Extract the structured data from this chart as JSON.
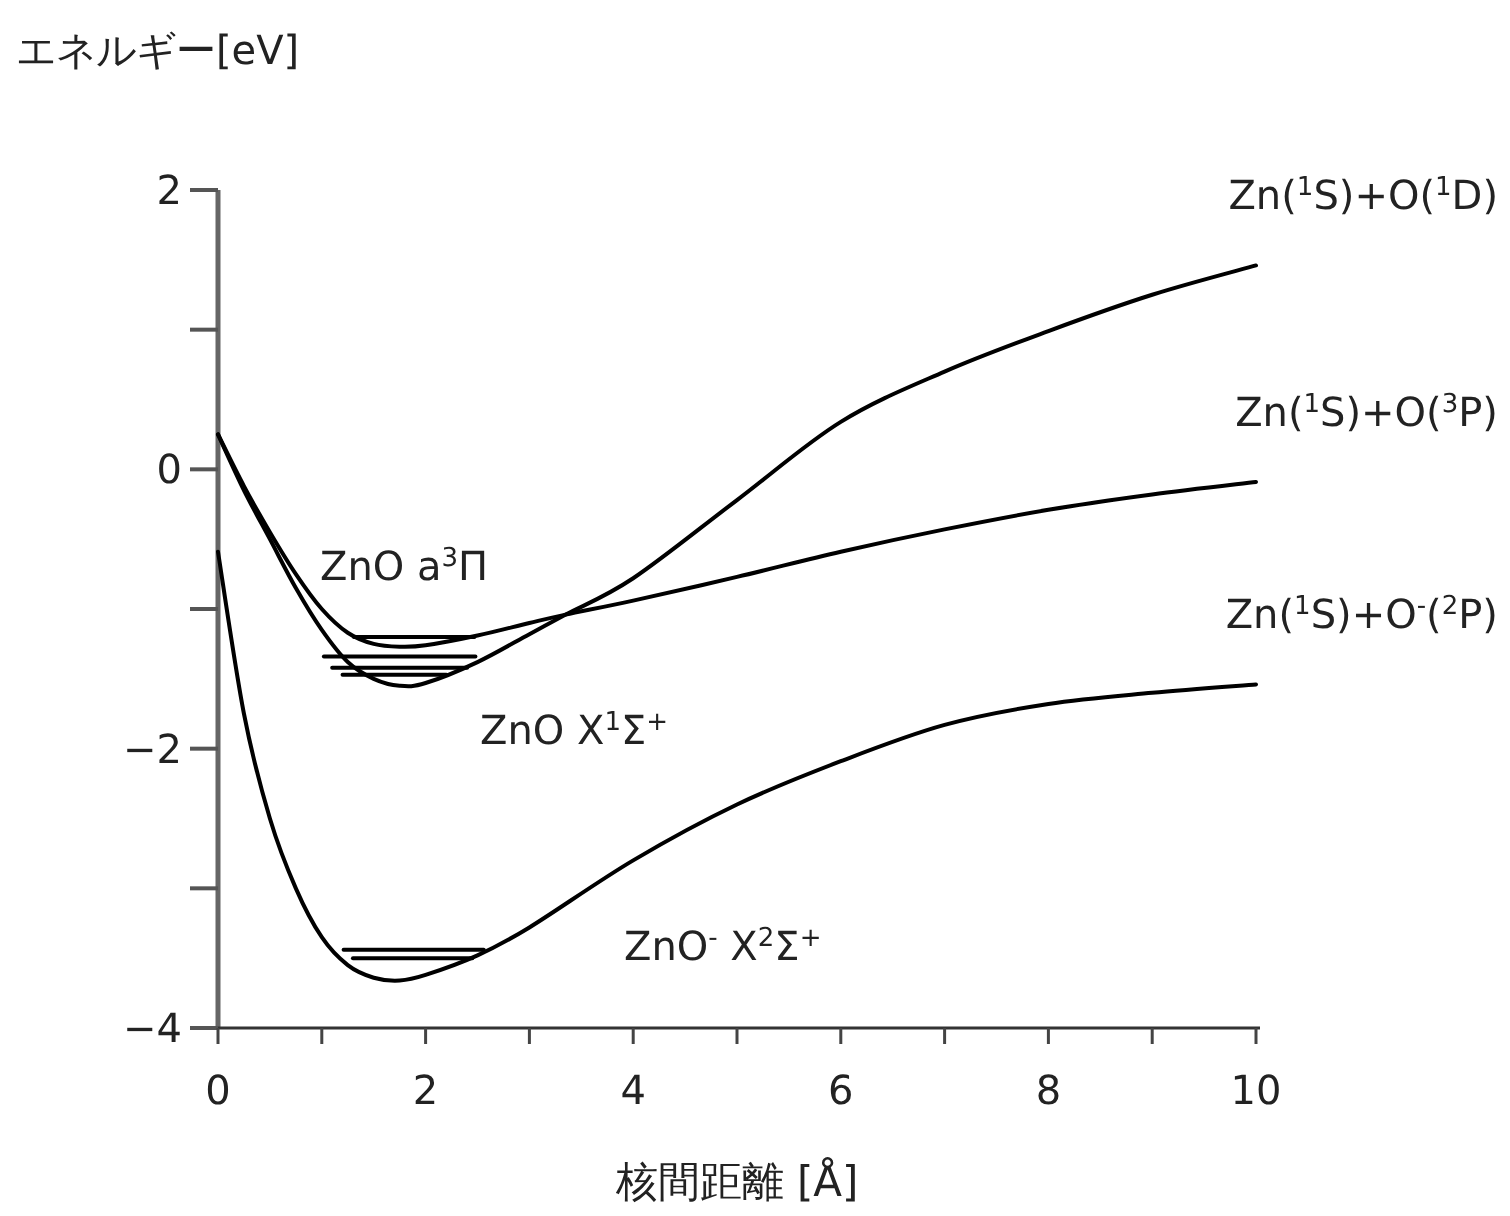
{
  "chart_data": {
    "type": "line",
    "xlabel": "核間距離 [Å]",
    "ylabel": "エネルギー[eV]",
    "xlim": [
      0,
      10
    ],
    "ylim": [
      -4,
      2
    ],
    "xticks": [
      0,
      {
        "value": 1,
        "label": null
      },
      2,
      {
        "value": 3,
        "label": null
      },
      4,
      {
        "value": 5,
        "label": null
      },
      6,
      {
        "value": 7,
        "label": null
      },
      8,
      {
        "value": 9,
        "label": null
      },
      10
    ],
    "yticks": [
      -4,
      {
        "value": -3,
        "label": null
      },
      -2,
      {
        "value": -1,
        "label": null
      },
      0,
      {
        "value": 1,
        "label": null
      },
      2
    ],
    "grid": false,
    "legend": false,
    "marker": "none",
    "line_style": "solid",
    "series": [
      {
        "name": "Zn($^{1}$S)+O($^{1}$D)",
        "color": "#000000",
        "x": [
          0,
          0.25,
          0.5,
          0.75,
          1,
          1.25,
          1.5,
          1.75,
          2,
          2.5,
          3,
          3.35,
          4,
          5,
          6,
          7,
          8,
          9,
          10
        ],
        "values": [
          0.25,
          -0.15,
          -0.5,
          -0.85,
          -1.15,
          -1.38,
          -1.5,
          -1.55,
          -1.53,
          -1.38,
          -1.18,
          -1.04,
          -0.78,
          -0.22,
          0.34,
          0.7,
          0.99,
          1.25,
          1.46
        ]
      },
      {
        "name": "Zn($^{1}$S)+O($^{3}$P)",
        "color": "#000000",
        "x": [
          0,
          0.25,
          0.5,
          0.75,
          1,
          1.25,
          1.5,
          1.75,
          2,
          2.5,
          3,
          3.35,
          4,
          5,
          6,
          7,
          8,
          9,
          10
        ],
        "values": [
          0.25,
          -0.12,
          -0.45,
          -0.75,
          -1.0,
          -1.17,
          -1.25,
          -1.27,
          -1.26,
          -1.19,
          -1.1,
          -1.04,
          -0.94,
          -0.77,
          -0.59,
          -0.43,
          -0.29,
          -0.18,
          -0.09
        ]
      },
      {
        "name": "Zn($^{1}$S)+O$^{-}$($^{2}$P)",
        "color": "#000000",
        "x": [
          0,
          0.25,
          0.5,
          0.75,
          1,
          1.25,
          1.5,
          1.75,
          2,
          2.5,
          3,
          4,
          5,
          6,
          7,
          8,
          9,
          10
        ],
        "values": [
          -0.59,
          -1.75,
          -2.5,
          -3.0,
          -3.35,
          -3.55,
          -3.64,
          -3.66,
          -3.62,
          -3.48,
          -3.28,
          -2.8,
          -2.4,
          -2.09,
          -1.83,
          -1.68,
          -1.6,
          -1.54
        ]
      },
      {
        "color": "#000000",
        "x": [
          1.31,
          2.47
        ],
        "values": [
          -1.2,
          -1.2
        ]
      },
      {
        "color": "#000000",
        "x": [
          1.02,
          2.48
        ],
        "values": [
          -1.34,
          -1.34
        ]
      },
      {
        "color": "#000000",
        "x": [
          1.1,
          2.4
        ],
        "values": [
          -1.42,
          -1.42
        ]
      },
      {
        "color": "#000000",
        "x": [
          1.2,
          2.2
        ],
        "values": [
          -1.47,
          -1.47
        ]
      },
      {
        "color": "#000000",
        "x": [
          1.21,
          2.56
        ],
        "values": [
          -3.44,
          -3.44
        ]
      },
      {
        "color": "#000000",
        "x": [
          1.3,
          2.45
        ],
        "values": [
          -3.5,
          -3.5
        ]
      }
    ],
    "annotations": [
      "ZnO a$^{3}$Π",
      "ZnO X$^{1}$Σ$^{+}$",
      "ZnO$^{-}$ X$^{2}$Σ$^{+}$"
    ]
  }
}
